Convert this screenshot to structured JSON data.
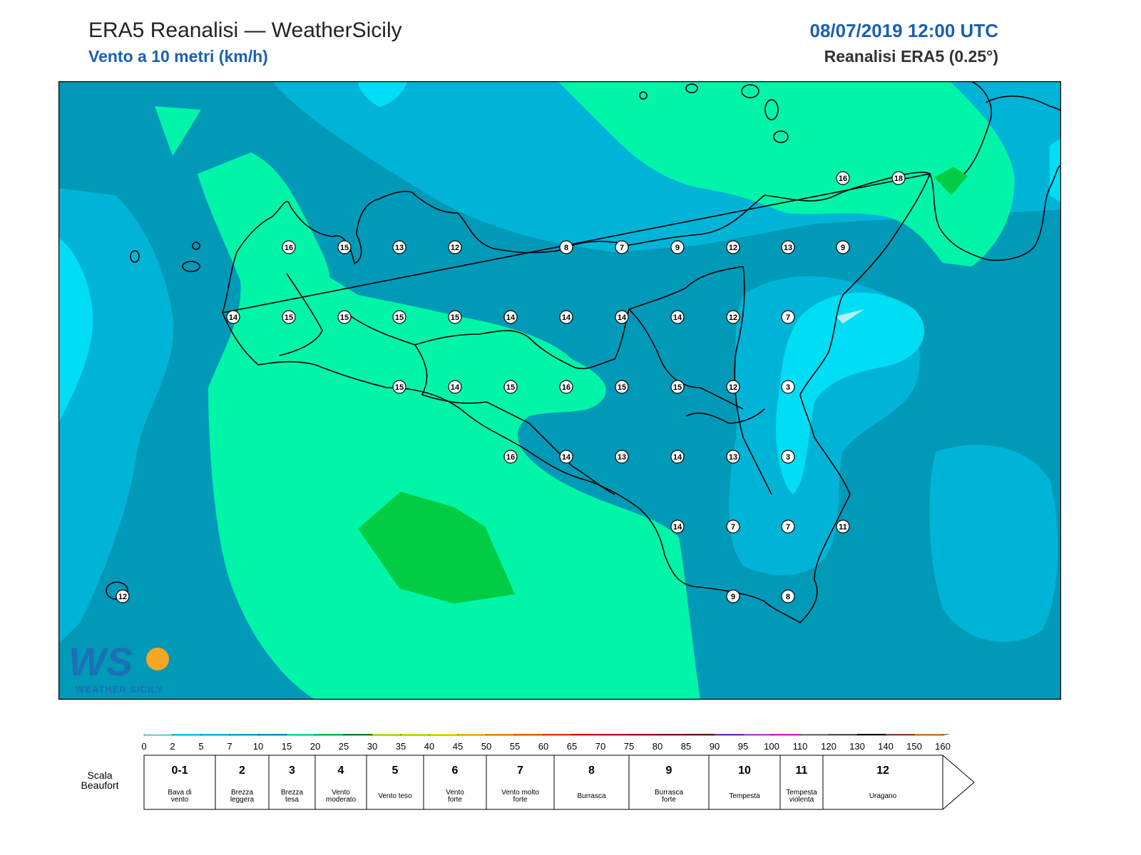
{
  "header": {
    "title": "ERA5 Reanalisi — WeatherSicily",
    "subtitle": "Vento a 10 metri (km/h)",
    "datetime": "08/07/2019 12:00 UTC",
    "model": "Reanalisi ERA5 (0.25°)"
  },
  "logo": {
    "text": "WEATHER SICILY"
  },
  "colors": {
    "band_0_2": "#b3f0fb",
    "band_2_5": "#00def6",
    "band_5_10": "#00b4d8",
    "band_10_15": "#0099b8",
    "band_15_20": "#00f5a8",
    "band_20_25": "#00cc44",
    "band_25_30": "#00992e"
  },
  "stations": [
    {
      "value": "16"
    },
    {
      "value": "18"
    },
    {
      "value": "16"
    },
    {
      "value": "15"
    },
    {
      "value": "13"
    },
    {
      "value": "12"
    },
    {
      "value": "8"
    },
    {
      "value": "7"
    },
    {
      "value": "9"
    },
    {
      "value": "12"
    },
    {
      "value": "13"
    },
    {
      "value": "9"
    },
    {
      "value": "14"
    },
    {
      "value": "15"
    },
    {
      "value": "15"
    },
    {
      "value": "15"
    },
    {
      "value": "15"
    },
    {
      "value": "14"
    },
    {
      "value": "14"
    },
    {
      "value": "14"
    },
    {
      "value": "14"
    },
    {
      "value": "12"
    },
    {
      "value": "7"
    },
    {
      "value": "15"
    },
    {
      "value": "14"
    },
    {
      "value": "15"
    },
    {
      "value": "16"
    },
    {
      "value": "15"
    },
    {
      "value": "15"
    },
    {
      "value": "12"
    },
    {
      "value": "3"
    },
    {
      "value": "16"
    },
    {
      "value": "14"
    },
    {
      "value": "13"
    },
    {
      "value": "14"
    },
    {
      "value": "13"
    },
    {
      "value": "3"
    },
    {
      "value": "14"
    },
    {
      "value": "7"
    },
    {
      "value": "7"
    },
    {
      "value": "11"
    },
    {
      "value": "9"
    },
    {
      "value": "8"
    },
    {
      "value": "12"
    }
  ],
  "colorbar": {
    "ticks": [
      "0",
      "2",
      "5",
      "7",
      "10",
      "15",
      "20",
      "25",
      "30",
      "35",
      "40",
      "45",
      "50",
      "55",
      "60",
      "65",
      "70",
      "75",
      "80",
      "85",
      "90",
      "95",
      "100",
      "110",
      "120",
      "130",
      "140",
      "150",
      "160"
    ],
    "colors": [
      "#b3f0fb",
      "#00def6",
      "#00c8ee",
      "#00b4d8",
      "#0099b8",
      "#00f5a8",
      "#00cc44",
      "#00852a",
      "#b4ff28",
      "#d6f500",
      "#fff000",
      "#ffc800",
      "#ff9600",
      "#ff6400",
      "#ff3200",
      "#e60000",
      "#c80028",
      "#a00014",
      "#820000",
      "#5a0000",
      "#7828c8",
      "#b450dc",
      "#e61ed2",
      "#808080",
      "#5a5a5a",
      "#000000",
      "#8c4b28",
      "#d2823c"
    ]
  },
  "beaufort": {
    "label": "Scala\nBeaufort",
    "cells": [
      {
        "num": "0-1",
        "desc": "Bava di\nvento"
      },
      {
        "num": "2",
        "desc": "Brezza\nleggera"
      },
      {
        "num": "3",
        "desc": "Brezza\ntesa"
      },
      {
        "num": "4",
        "desc": "Vento\nmoderato"
      },
      {
        "num": "5",
        "desc": "Vento teso"
      },
      {
        "num": "6",
        "desc": "Vento\nforte"
      },
      {
        "num": "7",
        "desc": "Vento molto\nforte"
      },
      {
        "num": "8",
        "desc": "Burrasca"
      },
      {
        "num": "9",
        "desc": "Burrasca\nforte"
      },
      {
        "num": "10",
        "desc": "Tempesta"
      },
      {
        "num": "11",
        "desc": "Tempesta\nviolenta"
      },
      {
        "num": "12",
        "desc": "Uragano"
      }
    ]
  }
}
